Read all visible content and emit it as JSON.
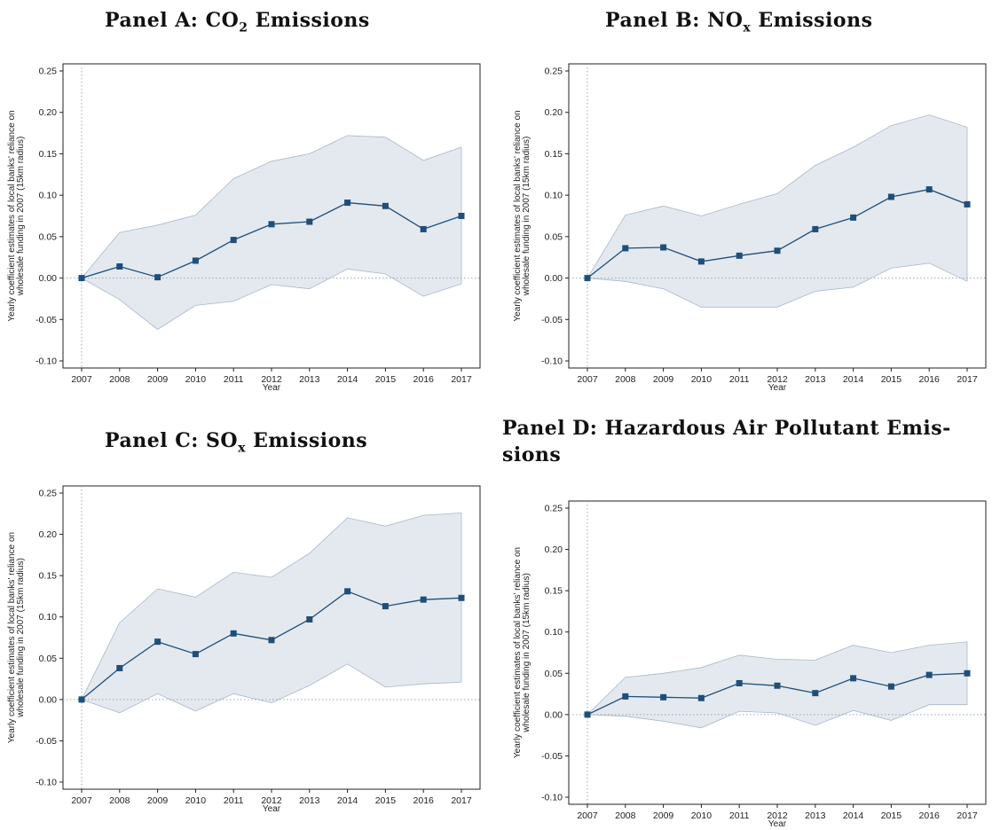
{
  "charts_meta": {
    "colors": {
      "line": "#1f4e79",
      "band": "#e3e9ef",
      "band_edge": "#a9b8c8",
      "zero": "#9aa6b2"
    }
  },
  "chart_data": [
    {
      "id": "A",
      "type": "line",
      "title": "Panel A: CO",
      "title_sub": "2",
      "title_tail": " Emissions",
      "xlabel": "Year",
      "ylabel_lines": [
        "Yearly coefficient estimates of local banks' reliance on",
        "wholesale funding in 2007 (15km radius)"
      ],
      "ylim": [
        -0.1,
        0.25
      ],
      "yticks": [
        "0.25",
        "0.20",
        "0.15",
        "0.10",
        "0.05",
        "0.00",
        "-0.05",
        "-0.10"
      ],
      "x": [
        "2007",
        "2008",
        "2009",
        "2010",
        "2011",
        "2012",
        "2013",
        "2014",
        "2015",
        "2016",
        "2017"
      ],
      "series": [
        {
          "values": [
            0.0,
            0.014,
            0.001,
            0.021,
            0.046,
            0.065,
            0.068,
            0.091,
            0.087,
            0.059,
            0.075
          ]
        }
      ],
      "ci_upper": [
        0.0,
        0.055,
        0.064,
        0.076,
        0.12,
        0.141,
        0.15,
        0.172,
        0.17,
        0.142,
        0.158
      ],
      "ci_lower": [
        0.0,
        -0.026,
        -0.062,
        -0.033,
        -0.028,
        -0.008,
        -0.013,
        0.011,
        0.005,
        -0.022,
        -0.007
      ]
    },
    {
      "id": "B",
      "type": "line",
      "title": "Panel B: NO",
      "title_sub": "x",
      "title_tail": " Emissions",
      "xlabel": "Year",
      "ylabel_lines": [
        "Yearly coefficient estimates of local banks' reliance on",
        "wholesale funding in 2007 (15km radius)"
      ],
      "ylim": [
        -0.1,
        0.25
      ],
      "yticks": [
        "0.25",
        "0.20",
        "0.15",
        "0.10",
        "0.05",
        "0.00",
        "-0.05",
        "-0.10"
      ],
      "x": [
        "2007",
        "2008",
        "2009",
        "2010",
        "2011",
        "2012",
        "2013",
        "2014",
        "2015",
        "2016",
        "2017"
      ],
      "series": [
        {
          "values": [
            0.0,
            0.036,
            0.037,
            0.02,
            0.027,
            0.033,
            0.059,
            0.073,
            0.098,
            0.107,
            0.089
          ]
        }
      ],
      "ci_upper": [
        0.0,
        0.076,
        0.087,
        0.075,
        0.089,
        0.102,
        0.136,
        0.158,
        0.184,
        0.197,
        0.182
      ],
      "ci_lower": [
        0.0,
        -0.004,
        -0.013,
        -0.035,
        -0.035,
        -0.035,
        -0.016,
        -0.011,
        0.012,
        0.018,
        -0.004
      ]
    },
    {
      "id": "C",
      "type": "line",
      "title": "Panel C: SO",
      "title_sub": "x",
      "title_tail": " Emissions",
      "xlabel": "Year",
      "ylabel_lines": [
        "Yearly coefficient estimates of local banks' reliance on",
        "wholesale funding in 2007 (15km radius)"
      ],
      "ylim": [
        -0.1,
        0.25
      ],
      "yticks": [
        "0.25",
        "0.20",
        "0.15",
        "0.10",
        "0.05",
        "0.00",
        "-0.05",
        "-0.10"
      ],
      "x": [
        "2007",
        "2008",
        "2009",
        "2010",
        "2011",
        "2012",
        "2013",
        "2014",
        "2015",
        "2016",
        "2017"
      ],
      "series": [
        {
          "values": [
            0.0,
            0.038,
            0.07,
            0.055,
            0.08,
            0.072,
            0.097,
            0.131,
            0.113,
            0.121,
            0.123
          ]
        }
      ],
      "ci_upper": [
        0.0,
        0.093,
        0.134,
        0.124,
        0.154,
        0.148,
        0.177,
        0.22,
        0.21,
        0.223,
        0.226
      ],
      "ci_lower": [
        0.0,
        -0.016,
        0.007,
        -0.014,
        0.007,
        -0.004,
        0.017,
        0.043,
        0.015,
        0.019,
        0.021
      ]
    },
    {
      "id": "D",
      "type": "line",
      "title": "Panel D: Hazardous Air Pollutant Emis-",
      "title_line2": "sions",
      "xlabel": "Year",
      "ylabel_lines": [
        "Yearly coefficient estimates of local banks' reliance on",
        "wholesale funding in 2007 (15km radius)"
      ],
      "ylim": [
        -0.1,
        0.25
      ],
      "yticks": [
        "0.25",
        "0.20",
        "0.15",
        "0.10",
        "0.05",
        "0.00",
        "-0.05",
        "-0.10"
      ],
      "x": [
        "2007",
        "2008",
        "2009",
        "2010",
        "2011",
        "2012",
        "2013",
        "2014",
        "2015",
        "2016",
        "2017"
      ],
      "series": [
        {
          "values": [
            0.0,
            0.022,
            0.021,
            0.02,
            0.038,
            0.035,
            0.026,
            0.044,
            0.034,
            0.048,
            0.05
          ]
        }
      ],
      "ci_upper": [
        0.0,
        0.045,
        0.05,
        0.057,
        0.072,
        0.067,
        0.066,
        0.084,
        0.075,
        0.084,
        0.088
      ],
      "ci_lower": [
        0.0,
        -0.002,
        -0.008,
        -0.016,
        0.004,
        0.002,
        -0.013,
        0.005,
        -0.007,
        0.012,
        0.012
      ]
    }
  ]
}
